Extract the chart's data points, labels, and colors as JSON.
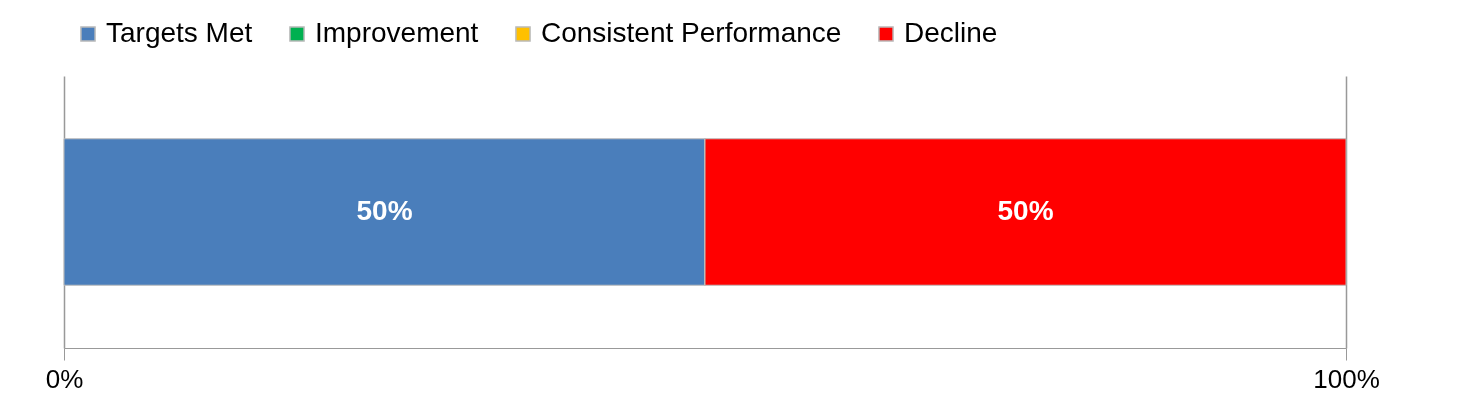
{
  "chart_data": {
    "type": "bar",
    "orientation": "horizontal",
    "stacked": true,
    "categories": [
      null
    ],
    "series": [
      {
        "name": "Targets Met",
        "color": "#4a7ebb",
        "values": [
          50
        ],
        "value_labels": [
          "50%"
        ]
      },
      {
        "name": "Improvement",
        "color": "#00b050",
        "values": [
          0
        ],
        "value_labels": [
          null
        ]
      },
      {
        "name": "Consistent Performance",
        "color": "#ffc000",
        "values": [
          0
        ],
        "value_labels": [
          null
        ]
      },
      {
        "name": "Decline",
        "color": "#ff0000",
        "values": [
          50
        ],
        "value_labels": [
          "50%"
        ]
      }
    ],
    "xlim": [
      0,
      100
    ],
    "xticks": [
      {
        "value": 0,
        "label": "0%"
      },
      {
        "value": 100,
        "label": "100%"
      }
    ],
    "grid": "x",
    "legend": "top",
    "tick_labels": "x"
  }
}
